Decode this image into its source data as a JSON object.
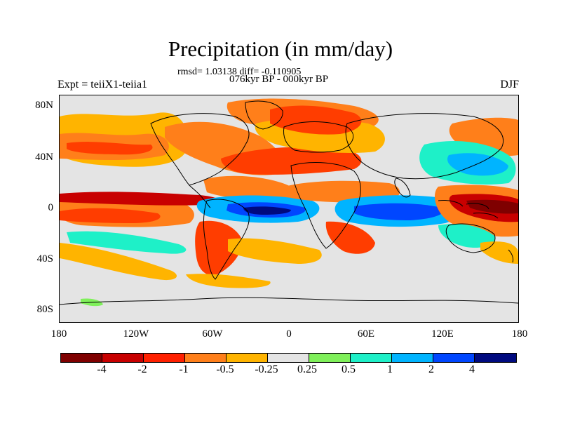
{
  "header": {
    "title": "Precipitation (in mm/day)",
    "stats": "rmsd= 1.03138 diff= -0.110905",
    "subtitle": "076kyr BP - 000kyr BP",
    "left_label": "Expt = teiiX1-teiia1",
    "right_label": "DJF"
  },
  "map": {
    "lat_labels": [
      "80N",
      "40N",
      "0",
      "40S",
      "80S"
    ],
    "lon_labels": [
      "180",
      "120W",
      "60W",
      "0",
      "60E",
      "120E",
      "180"
    ],
    "background_color": "#e4e4e4",
    "regions": [
      {
        "name": "north-pacific-drying",
        "color": "#ff7f1a"
      },
      {
        "name": "north-atlantic-drying",
        "color": "#ff3d00"
      },
      {
        "name": "eurasia-drying",
        "color": "#ff7f1a"
      },
      {
        "name": "east-asia-wetting",
        "color": "#00b4ff"
      },
      {
        "name": "atlantic-itcz-wetting",
        "color": "#0046ff"
      },
      {
        "name": "indian-ocean-wetting",
        "color": "#0046ff"
      },
      {
        "name": "maritime-continent-drying",
        "color": "#c80000"
      },
      {
        "name": "south-pacific-drying",
        "color": "#ff3d00"
      }
    ]
  },
  "colorbar": {
    "colors": [
      "#7f0000",
      "#c80000",
      "#ff2000",
      "#ff7f1a",
      "#ffb400",
      "#e4e4e4",
      "#7ff05a",
      "#1ef0c8",
      "#00b4ff",
      "#0046ff",
      "#000a7f"
    ],
    "labels": [
      "-4",
      "-2",
      "-1",
      "-0.5",
      "-0.25",
      "0.25",
      "0.5",
      "1",
      "2",
      "4"
    ]
  }
}
